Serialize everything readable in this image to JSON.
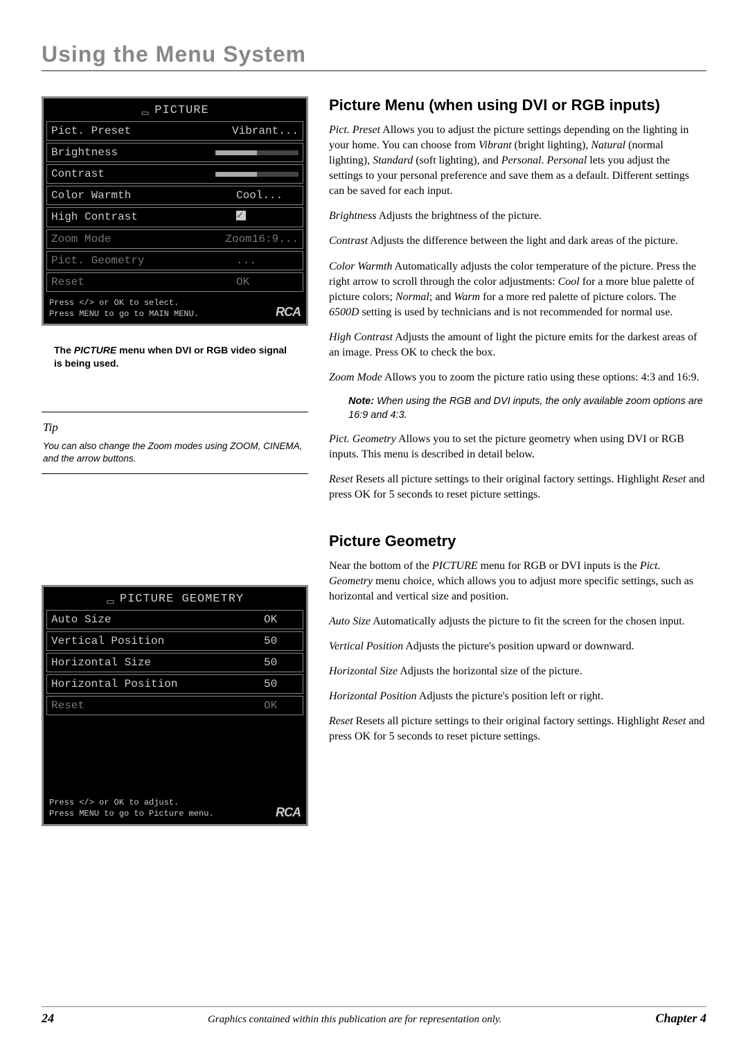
{
  "chapter_title": "Using the Menu System",
  "picture_menu": {
    "title": "PICTURE",
    "rows": [
      {
        "label": "Pict. Preset",
        "value": "Vibrant..."
      },
      {
        "label": "Brightness",
        "slider": 50
      },
      {
        "label": "Contrast",
        "slider": 50
      },
      {
        "label": "Color Warmth",
        "value": "Cool..."
      },
      {
        "label": "High Contrast",
        "check": true
      },
      {
        "label": "Zoom Mode",
        "value": "Zoom16:9...",
        "dim": true
      },
      {
        "label": "Pict. Geometry",
        "value": "...",
        "dim": true
      },
      {
        "label": "Reset",
        "value": "OK",
        "dim": true
      }
    ],
    "footer1": "Press </> or OK to select.",
    "footer2": "Press MENU to go to MAIN MENU.",
    "logo": "RCA"
  },
  "caption1": "The PICTURE menu when DVI or RGB video signal is being used.",
  "tip": {
    "title": "Tip",
    "body": "You can also change the Zoom modes using ZOOM, CINEMA, and the arrow buttons."
  },
  "geometry_menu": {
    "title": "PICTURE GEOMETRY",
    "rows": [
      {
        "label": "Auto Size",
        "value": "OK"
      },
      {
        "label": "Vertical Position",
        "value": "50"
      },
      {
        "label": "Horizontal Size",
        "value": "50"
      },
      {
        "label": "Horizontal Position",
        "value": "50"
      },
      {
        "label": "Reset",
        "value": "OK",
        "dim": true
      }
    ],
    "footer1": "Press </> or OK to adjust.",
    "footer2": "Press MENU to go to Picture menu.",
    "logo": "RCA"
  },
  "section1": {
    "heading": "Picture Menu (when using DVI or RGB inputs)",
    "p1_a": "Pict. Preset",
    "p1_b": "   Allows you to adjust the picture settings depending on the lighting in your home. You can choose from ",
    "p1_c": "Vibrant",
    "p1_d": " (bright lighting), ",
    "p1_e": "Natural",
    "p1_f": " (normal lighting), ",
    "p1_g": "Standard",
    "p1_h": " (soft lighting), and ",
    "p1_i": "Personal",
    "p1_j": ". ",
    "p1_k": "Personal",
    "p1_l": " lets you adjust the settings to your personal preference and save them as a default. Different settings can be saved for each input.",
    "p2_a": "Brightness",
    "p2_b": "   Adjusts the brightness of the picture.",
    "p3_a": "Contrast",
    "p3_b": "   Adjusts the difference between the light and dark areas of the picture.",
    "p4_a": "Color Warmth",
    "p4_b": "   Automatically adjusts the color temperature of the picture. Press the right arrow to scroll through the color adjustments: ",
    "p4_c": "Cool",
    "p4_d": " for a more blue palette of picture colors; ",
    "p4_e": "Normal",
    "p4_f": "; and ",
    "p4_g": "Warm",
    "p4_h": " for a more red palette of picture colors. The ",
    "p4_i": "6500D",
    "p4_j": " setting is used by technicians and is not recommended for normal use.",
    "p5_a": "High Contrast",
    "p5_b": "   Adjusts the amount of light the picture emits for the darkest areas of an image. Press OK to check the box.",
    "p6_a": "Zoom Mode",
    "p6_b": "   Allows you to zoom the picture ratio using these options: 4:3 and 16:9.",
    "note_lead": "Note:",
    "note_body": " When using the RGB and DVI inputs, the only available zoom options are 16:9 and 4:3.",
    "p7_a": "Pict. Geometry",
    "p7_b": "   Allows you to set the picture geometry when using DVI or RGB inputs. This menu is described in detail below.",
    "p8_a": "Reset",
    "p8_b": "   Resets all picture settings to their original factory settings. Highlight ",
    "p8_c": "Reset",
    "p8_d": " and press OK for 5 seconds to reset picture settings."
  },
  "section2": {
    "heading": "Picture Geometry",
    "p1_a": "Near the bottom of the ",
    "p1_b": "PICTURE",
    "p1_c": " menu for RGB or DVI inputs is the ",
    "p1_d": "Pict. Geometry",
    "p1_e": " menu choice, which allows you to adjust more specific settings, such as horizontal and vertical size and position.",
    "p2_a": "Auto Size",
    "p2_b": "   Automatically adjusts the picture to fit the screen for the chosen input.",
    "p3_a": "Vertical Position",
    "p3_b": "   Adjusts the picture's position upward or downward.",
    "p4_a": "Horizontal Size",
    "p4_b": "   Adjusts the horizontal size of the picture.",
    "p5_a": "Horizontal Position",
    "p5_b": "   Adjusts the picture's position left or right.",
    "p6_a": "Reset",
    "p6_b": "   Resets all picture settings to their original factory settings. Highlight ",
    "p6_c": "Reset",
    "p6_d": " and press OK for 5 seconds to reset picture settings."
  },
  "footer": {
    "page": "24",
    "mid": "Graphics contained within this publication are for representation only.",
    "chap": "Chapter 4"
  }
}
